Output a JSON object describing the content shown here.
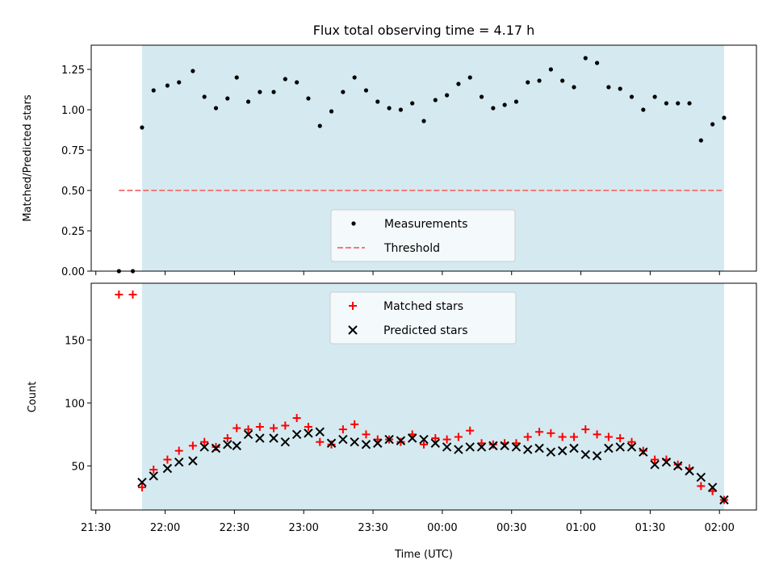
{
  "chart_data": [
    {
      "type": "scatter",
      "title": "Flux total observing time = 4.17 h",
      "xlabel": "",
      "ylabel": "Matched/Predicted stars",
      "ylim": [
        0,
        1.4
      ],
      "yticks": [
        0,
        0.25,
        0.5,
        0.75,
        1.0,
        1.25
      ],
      "ytick_labels": [
        "0.00",
        "0.25",
        "0.50",
        "0.75",
        "1.00",
        "1.25"
      ],
      "xlim": [
        "21:28",
        "02:16"
      ],
      "x_ticks_time": [
        "21:30",
        "22:00",
        "22:30",
        "23:00",
        "23:30",
        "00:00",
        "00:30",
        "01:00",
        "01:30",
        "02:00"
      ],
      "x_tick_labels_shown": false,
      "observing_window": [
        "21:50",
        "02:02"
      ],
      "observing_window_color": "#d4eaf0",
      "threshold": {
        "label": "Threshold",
        "value": 0.5,
        "from": "21:40",
        "to": "02:02",
        "color": "#f07c7c",
        "style": "dashed"
      },
      "series": [
        {
          "name": "Measurements",
          "marker": "dot",
          "color": "#000000",
          "points": [
            [
              "21:40",
              0.0
            ],
            [
              "21:46",
              0.0
            ],
            [
              "21:50",
              0.89
            ],
            [
              "21:55",
              1.12
            ],
            [
              "22:01",
              1.15
            ],
            [
              "22:06",
              1.17
            ],
            [
              "22:12",
              1.24
            ],
            [
              "22:17",
              1.08
            ],
            [
              "22:22",
              1.01
            ],
            [
              "22:27",
              1.07
            ],
            [
              "22:31",
              1.2
            ],
            [
              "22:36",
              1.05
            ],
            [
              "22:41",
              1.11
            ],
            [
              "22:47",
              1.11
            ],
            [
              "22:52",
              1.19
            ],
            [
              "22:57",
              1.17
            ],
            [
              "23:02",
              1.07
            ],
            [
              "23:07",
              0.9
            ],
            [
              "23:12",
              0.99
            ],
            [
              "23:17",
              1.11
            ],
            [
              "23:22",
              1.2
            ],
            [
              "23:27",
              1.12
            ],
            [
              "23:32",
              1.05
            ],
            [
              "23:37",
              1.01
            ],
            [
              "23:42",
              1.0
            ],
            [
              "23:47",
              1.04
            ],
            [
              "23:52",
              0.93
            ],
            [
              "23:57",
              1.06
            ],
            [
              "00:02",
              1.09
            ],
            [
              "00:07",
              1.16
            ],
            [
              "00:12",
              1.2
            ],
            [
              "00:17",
              1.08
            ],
            [
              "00:22",
              1.01
            ],
            [
              "00:27",
              1.03
            ],
            [
              "00:32",
              1.05
            ],
            [
              "00:37",
              1.17
            ],
            [
              "00:42",
              1.18
            ],
            [
              "00:47",
              1.25
            ],
            [
              "00:52",
              1.18
            ],
            [
              "00:57",
              1.14
            ],
            [
              "01:02",
              1.32
            ],
            [
              "01:07",
              1.29
            ],
            [
              "01:12",
              1.14
            ],
            [
              "01:17",
              1.13
            ],
            [
              "01:22",
              1.08
            ],
            [
              "01:27",
              1.0
            ],
            [
              "01:32",
              1.08
            ],
            [
              "01:37",
              1.04
            ],
            [
              "01:42",
              1.04
            ],
            [
              "01:47",
              1.04
            ],
            [
              "01:52",
              0.81
            ],
            [
              "01:57",
              0.91
            ],
            [
              "02:02",
              0.95
            ]
          ]
        }
      ],
      "legend": {
        "entries": [
          "Measurements",
          "Threshold"
        ],
        "placement": "lower-center"
      }
    },
    {
      "type": "scatter",
      "title": "",
      "xlabel": "Time (UTC)",
      "ylabel": "Count",
      "ylim": [
        15,
        195
      ],
      "yticks": [
        50,
        100,
        150
      ],
      "ytick_labels": [
        "50",
        "100",
        "150"
      ],
      "xlim": [
        "21:28",
        "02:16"
      ],
      "x_ticks_time": [
        "21:30",
        "22:00",
        "22:30",
        "23:00",
        "23:30",
        "00:00",
        "00:30",
        "01:00",
        "01:30",
        "02:00"
      ],
      "x_tick_labels": [
        "21:30",
        "22:00",
        "22:30",
        "23:00",
        "23:30",
        "00:00",
        "00:30",
        "01:00",
        "01:30",
        "02:00"
      ],
      "observing_window": [
        "21:50",
        "02:02"
      ],
      "observing_window_color": "#d4eaf0",
      "series": [
        {
          "name": "Matched stars",
          "marker": "plus",
          "color": "#ff0000",
          "points": [
            [
              "21:40",
              186
            ],
            [
              "21:46",
              186
            ],
            [
              "21:50",
              33
            ],
            [
              "21:55",
              47
            ],
            [
              "22:01",
              55
            ],
            [
              "22:06",
              62
            ],
            [
              "22:12",
              66
            ],
            [
              "22:17",
              69
            ],
            [
              "22:22",
              65
            ],
            [
              "22:27",
              72
            ],
            [
              "22:31",
              80
            ],
            [
              "22:36",
              79
            ],
            [
              "22:41",
              81
            ],
            [
              "22:47",
              80
            ],
            [
              "22:52",
              82
            ],
            [
              "22:57",
              88
            ],
            [
              "23:02",
              81
            ],
            [
              "23:07",
              69
            ],
            [
              "23:12",
              67
            ],
            [
              "23:17",
              79
            ],
            [
              "23:22",
              83
            ],
            [
              "23:27",
              75
            ],
            [
              "23:32",
              71
            ],
            [
              "23:37",
              71
            ],
            [
              "23:42",
              69
            ],
            [
              "23:47",
              75
            ],
            [
              "23:52",
              67
            ],
            [
              "23:57",
              72
            ],
            [
              "00:02",
              71
            ],
            [
              "00:07",
              73
            ],
            [
              "00:12",
              78
            ],
            [
              "00:17",
              68
            ],
            [
              "00:22",
              67
            ],
            [
              "00:27",
              68
            ],
            [
              "00:32",
              68
            ],
            [
              "00:37",
              73
            ],
            [
              "00:42",
              77
            ],
            [
              "00:47",
              76
            ],
            [
              "00:52",
              73
            ],
            [
              "00:57",
              73
            ],
            [
              "01:02",
              79
            ],
            [
              "01:07",
              75
            ],
            [
              "01:12",
              73
            ],
            [
              "01:17",
              72
            ],
            [
              "01:22",
              69
            ],
            [
              "01:27",
              62
            ],
            [
              "01:32",
              55
            ],
            [
              "01:37",
              55
            ],
            [
              "01:42",
              51
            ],
            [
              "01:47",
              48
            ],
            [
              "01:52",
              34
            ],
            [
              "01:57",
              30
            ],
            [
              "02:02",
              23
            ]
          ]
        },
        {
          "name": "Predicted stars",
          "marker": "x",
          "color": "#000000",
          "points": [
            [
              "21:50",
              37
            ],
            [
              "21:55",
              42
            ],
            [
              "22:01",
              48
            ],
            [
              "22:06",
              53
            ],
            [
              "22:12",
              54
            ],
            [
              "22:17",
              65
            ],
            [
              "22:22",
              64
            ],
            [
              "22:27",
              67
            ],
            [
              "22:31",
              66
            ],
            [
              "22:36",
              75
            ],
            [
              "22:41",
              72
            ],
            [
              "22:47",
              72
            ],
            [
              "22:52",
              69
            ],
            [
              "22:57",
              75
            ],
            [
              "23:02",
              76
            ],
            [
              "23:07",
              77
            ],
            [
              "23:12",
              68
            ],
            [
              "23:17",
              71
            ],
            [
              "23:22",
              69
            ],
            [
              "23:27",
              67
            ],
            [
              "23:32",
              68
            ],
            [
              "23:37",
              71
            ],
            [
              "23:42",
              70
            ],
            [
              "23:47",
              72
            ],
            [
              "23:52",
              71
            ],
            [
              "23:57",
              68
            ],
            [
              "00:02",
              65
            ],
            [
              "00:07",
              63
            ],
            [
              "00:12",
              65
            ],
            [
              "00:17",
              65
            ],
            [
              "00:22",
              66
            ],
            [
              "00:27",
              66
            ],
            [
              "00:32",
              65
            ],
            [
              "00:37",
              63
            ],
            [
              "00:42",
              64
            ],
            [
              "00:47",
              61
            ],
            [
              "00:52",
              62
            ],
            [
              "00:57",
              64
            ],
            [
              "01:02",
              59
            ],
            [
              "01:07",
              58
            ],
            [
              "01:12",
              64
            ],
            [
              "01:17",
              65
            ],
            [
              "01:22",
              65
            ],
            [
              "01:27",
              61
            ],
            [
              "01:32",
              51
            ],
            [
              "01:37",
              53
            ],
            [
              "01:42",
              50
            ],
            [
              "01:47",
              46
            ],
            [
              "01:52",
              41
            ],
            [
              "01:57",
              33
            ],
            [
              "02:02",
              23
            ]
          ]
        }
      ],
      "legend": {
        "entries": [
          "Matched stars",
          "Predicted stars"
        ],
        "placement": "upper-center"
      }
    }
  ]
}
